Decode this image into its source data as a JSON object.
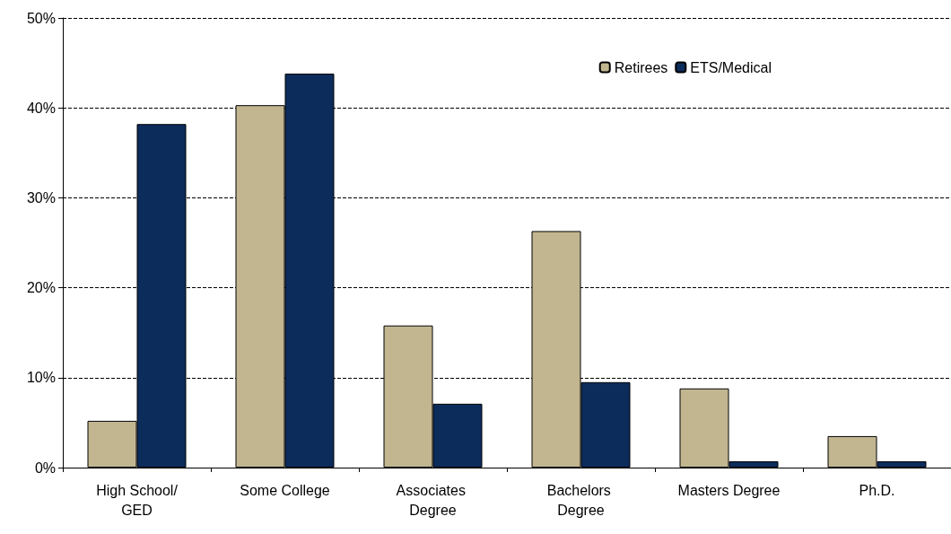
{
  "chart_data": {
    "type": "bar",
    "categories": [
      "High School/GED",
      "Some College",
      "Associates Degree",
      "Bachelors Degree",
      "Masters Degree",
      "Ph.D."
    ],
    "series": [
      {
        "name": "Retirees",
        "color": "#c2b690",
        "values": [
          5.2,
          40.3,
          15.8,
          26.3,
          8.8,
          3.5
        ]
      },
      {
        "name": "ETS/Medical",
        "color": "#0c2c5c",
        "values": [
          38.2,
          43.8,
          7.1,
          9.5,
          0.7,
          0.7
        ]
      }
    ],
    "ylim": [
      0,
      50
    ],
    "yticks": [
      {
        "value": 0,
        "label": "0%"
      },
      {
        "value": 10,
        "label": "10%"
      },
      {
        "value": 20,
        "label": "20%"
      },
      {
        "value": 30,
        "label": "30%"
      },
      {
        "value": 40,
        "label": "40%"
      },
      {
        "value": 50,
        "label": "50%"
      }
    ],
    "grid": "y",
    "legend": "top right"
  }
}
